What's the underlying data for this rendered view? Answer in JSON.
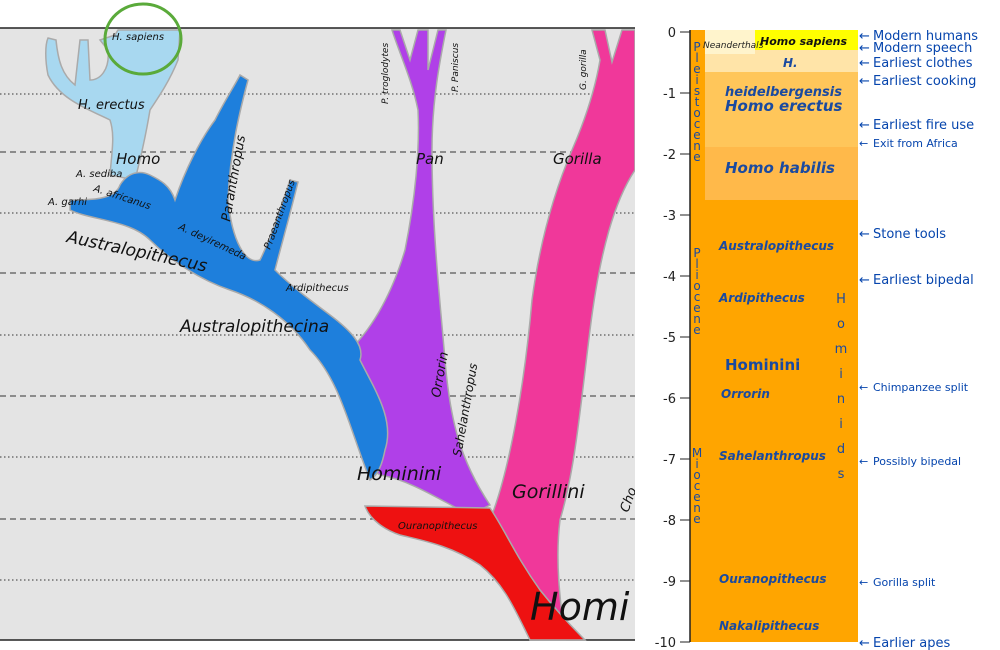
{
  "tree": {
    "species_labels": {
      "h_sapiens": "H. sapiens",
      "h_erectus": "H. erectus",
      "homo": "Homo",
      "a_sediba": "A. sediba",
      "a_africanus": "A. africanus",
      "a_garhi": "A. garhi",
      "a_deyiremeda": "A. deyiremeda",
      "paranthropus": "Paranthropus",
      "praeanthropus": "Praeanthropus",
      "australopithecus": "Australopithecus",
      "ardipithecus": "Ardipithecus",
      "australopithecina": "Australopithecina",
      "p_troglodytes": "P. troglodytes",
      "p_paniscus": "P. Paniscus",
      "pan": "Pan",
      "g_gorilla": "G. gorilla",
      "gorilla": "Gorilla",
      "orrorin": "Orrorin",
      "sahelanthropus": "Sahelanthropus",
      "hominini": "Hominini",
      "gorillini": "Gorillini",
      "ouranopithecus": "Ouranopithecus",
      "hominidae_partial": "Homi",
      "chimp_partial": "Cho"
    },
    "colors": {
      "homo": "#a8d8f0",
      "australopithecina": "#1e7fdc",
      "pan": "#b040e8",
      "gorilla": "#f0389a",
      "ouranopithecus": "#ee1111",
      "background": "#e4e4e4",
      "highlight_circle": "#5aaa3a"
    }
  },
  "timeline": {
    "axis_ticks": [
      "0",
      "-1",
      "-2",
      "-3",
      "-4",
      "-5",
      "-6",
      "-7",
      "-8",
      "-9",
      "-10"
    ],
    "epochs": {
      "pleistocene": "Pleistocene",
      "pliocene": "Pliocene",
      "miocene": "Miocene"
    },
    "hominids_vertical": "Hominids",
    "taxa": {
      "neanderthals": "Neanderthals",
      "homo_sapiens": "Homo sapiens",
      "h": "H.",
      "heidelbergensis": "heidelbergensis",
      "homo_erectus": "Homo erectus",
      "homo_habilis": "Homo habilis",
      "australopithecus": "Australopithecus",
      "ardipithecus": "Ardipithecus",
      "hominini": "Hominini",
      "orrorin": "Orrorin",
      "sahelanthropus": "Sahelanthropus",
      "ouranopithecus": "Ouranopithecus",
      "nakalipithecus": "Nakalipithecus"
    },
    "events": {
      "modern_humans": "Modern humans",
      "modern_speech": "Modern speech",
      "earliest_clothes": "Earliest clothes",
      "earliest_cooking": "Earliest cooking",
      "earliest_fire_use": "Earliest fire use",
      "exit_from_africa": "Exit from Africa",
      "stone_tools": "Stone tools",
      "earliest_bipedal": "Earliest bipedal",
      "chimpanzee_split": "Chimpanzee split",
      "possibly_bipedal": "Possibly bipedal",
      "gorilla_split": "Gorilla split",
      "earlier_apes": "Earlier apes"
    },
    "colors": {
      "orange": "#ffa500",
      "light_orange": "#ffb94a",
      "pale": "#ffe4a8",
      "yellow": "#ffff00",
      "text_blue": "#1a4aa0",
      "event_blue": "#0645ad"
    }
  }
}
